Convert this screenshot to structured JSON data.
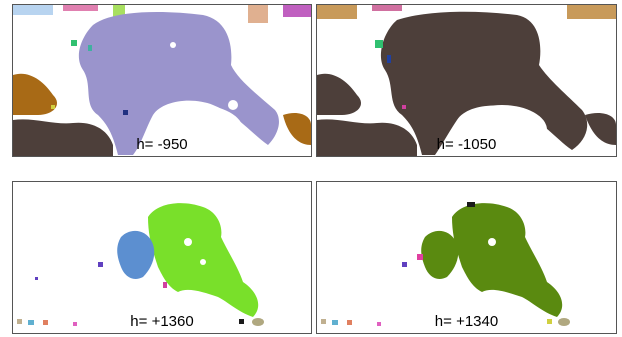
{
  "panels": [
    {
      "caption": "h= -950",
      "main_color": "#9a94cc",
      "side_color": "#a86a16",
      "dark_color": "#4d3f3a"
    },
    {
      "caption": "h= -1050",
      "main_color": "#4d3f3a",
      "side_color": "#4d3f3a",
      "dark_color": "#4d3f3a"
    },
    {
      "caption": "h= +1360",
      "main_color": "#79e02a",
      "side_color": "#5c8fd0",
      "dark_color": "#1a1a1a"
    },
    {
      "caption": "h= +1340",
      "main_color": "#5a8a10",
      "side_color": "#5a8a10",
      "dark_color": "#1a1a1a"
    }
  ]
}
